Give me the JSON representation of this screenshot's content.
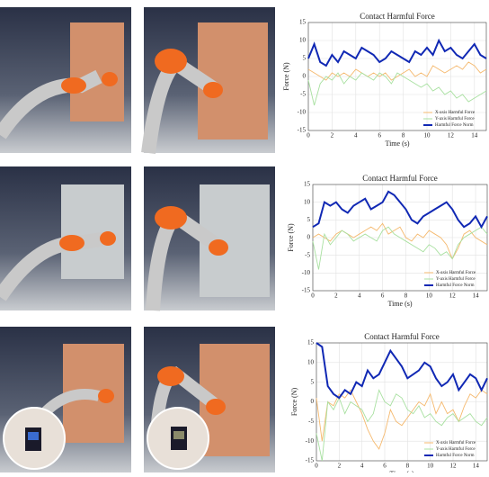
{
  "chart_data": [
    {
      "type": "line",
      "title": "Contact Harmful Force",
      "xlabel": "Time (s)",
      "ylabel": "Force (N)",
      "x": [
        0,
        0.5,
        1,
        1.5,
        2,
        2.5,
        3,
        3.5,
        4,
        4.5,
        5,
        5.5,
        6,
        6.5,
        7,
        7.5,
        8,
        8.5,
        9,
        9.5,
        10,
        10.5,
        11,
        11.5,
        12,
        12.5,
        13,
        13.5,
        14,
        14.5,
        15
      ],
      "xlim": [
        0,
        15
      ],
      "xticks": [
        0,
        2,
        4,
        6,
        8,
        10,
        12,
        14
      ],
      "ylim": [
        -15,
        15
      ],
      "yticks": [
        -15,
        -10,
        -5,
        0,
        5,
        10,
        15
      ],
      "grid": true,
      "legend": "lower right",
      "series": [
        {
          "name": "X-axis Harmful Force",
          "color": "#f5b96e",
          "values": [
            2,
            1,
            0,
            -1,
            1,
            0,
            1,
            0,
            2,
            1,
            0,
            1,
            0,
            1,
            -1,
            0,
            1,
            2,
            0,
            1,
            0,
            3,
            2,
            1,
            2,
            3,
            2,
            4,
            3,
            1,
            2
          ]
        },
        {
          "name": "Y-axis Harmful Force",
          "color": "#a8e0a0",
          "values": [
            -1,
            -8,
            -2,
            0,
            -1,
            1,
            -2,
            0,
            -1,
            1,
            0,
            -1,
            1,
            0,
            -2,
            1,
            0,
            -1,
            -2,
            -3,
            -2,
            -4,
            -3,
            -5,
            -4,
            -6,
            -5,
            -7,
            -6,
            -5,
            -4
          ]
        },
        {
          "name": "Harmful Force Norm",
          "color": "#1028b4",
          "values": [
            5,
            9,
            4,
            3,
            6,
            4,
            7,
            6,
            5,
            8,
            7,
            6,
            4,
            5,
            7,
            6,
            5,
            4,
            7,
            6,
            8,
            6,
            10,
            7,
            8,
            6,
            5,
            7,
            9,
            6,
            5
          ]
        }
      ]
    },
    {
      "type": "line",
      "title": "Contact Harmful Force",
      "xlabel": "Time (s)",
      "ylabel": "Force (N)",
      "x": [
        0,
        0.5,
        1,
        1.5,
        2,
        2.5,
        3,
        3.5,
        4,
        4.5,
        5,
        5.5,
        6,
        6.5,
        7,
        7.5,
        8,
        8.5,
        9,
        9.5,
        10,
        10.5,
        11,
        11.5,
        12,
        12.5,
        13,
        13.5,
        14,
        14.5,
        15
      ],
      "xlim": [
        0,
        15
      ],
      "xticks": [
        0,
        2,
        4,
        6,
        8,
        10,
        12,
        14
      ],
      "ylim": [
        -15,
        15
      ],
      "yticks": [
        -15,
        -10,
        -5,
        0,
        5,
        10,
        15
      ],
      "grid": true,
      "legend": "lower right",
      "series": [
        {
          "name": "X-axis Harmful Force",
          "color": "#f5b96e",
          "values": [
            0,
            1,
            0,
            -1,
            1,
            2,
            1,
            0,
            1,
            2,
            3,
            2,
            4,
            1,
            2,
            3,
            0,
            -1,
            1,
            0,
            2,
            1,
            0,
            -2,
            -6,
            -3,
            1,
            2,
            0,
            -1,
            -2
          ]
        },
        {
          "name": "Y-axis Harmful Force",
          "color": "#a8e0a0",
          "values": [
            -1,
            -9,
            1,
            -2,
            0,
            2,
            1,
            -1,
            0,
            1,
            0,
            -1,
            2,
            3,
            1,
            0,
            -1,
            -2,
            -3,
            -4,
            -2,
            -3,
            -5,
            -4,
            -6,
            -2,
            0,
            1,
            2,
            3,
            1
          ]
        },
        {
          "name": "Harmful Force Norm",
          "color": "#1028b4",
          "values": [
            3,
            4,
            10,
            9,
            10,
            8,
            7,
            9,
            10,
            11,
            8,
            9,
            10,
            13,
            12,
            10,
            8,
            5,
            4,
            6,
            7,
            8,
            9,
            10,
            8,
            5,
            3,
            4,
            6,
            3,
            6
          ]
        }
      ]
    },
    {
      "type": "line",
      "title": "Contact Harmful Force",
      "xlabel": "Time (s)",
      "ylabel": "Force (N)",
      "x": [
        0,
        0.5,
        1,
        1.5,
        2,
        2.5,
        3,
        3.5,
        4,
        4.5,
        5,
        5.5,
        6,
        6.5,
        7,
        7.5,
        8,
        8.5,
        9,
        9.5,
        10,
        10.5,
        11,
        11.5,
        12,
        12.5,
        13,
        13.5,
        14,
        14.5,
        15
      ],
      "xlim": [
        0,
        15
      ],
      "xticks": [
        0,
        2,
        4,
        6,
        8,
        10,
        12,
        14
      ],
      "ylim": [
        -15,
        15
      ],
      "yticks": [
        -15,
        -10,
        -5,
        0,
        5,
        10,
        15
      ],
      "grid": true,
      "legend": "lower right",
      "series": [
        {
          "name": "X-axis Harmful Force",
          "color": "#f5b96e",
          "values": [
            1,
            -10,
            0,
            -1,
            2,
            1,
            3,
            0,
            -3,
            -7,
            -10,
            -12,
            -8,
            -2,
            -5,
            -6,
            -4,
            -2,
            0,
            -1,
            2,
            -3,
            0,
            -3,
            -2,
            -5,
            -1,
            2,
            1,
            3,
            2
          ]
        },
        {
          "name": "Y-axis Harmful Force",
          "color": "#a8e0a0",
          "values": [
            -8,
            -15,
            0,
            -2,
            1,
            -3,
            0,
            -1,
            -2,
            -5,
            -3,
            3,
            0,
            -1,
            2,
            1,
            -2,
            -3,
            -1,
            -4,
            -3,
            -5,
            -6,
            -4,
            -3,
            -5,
            -4,
            -3,
            -5,
            -6,
            -4
          ]
        },
        {
          "name": "Harmful Force Norm",
          "color": "#1028b4",
          "values": [
            15,
            14,
            4,
            2,
            1,
            3,
            2,
            5,
            4,
            8,
            6,
            7,
            10,
            13,
            11,
            9,
            6,
            7,
            8,
            10,
            9,
            6,
            4,
            5,
            7,
            3,
            5,
            7,
            6,
            3,
            6
          ]
        }
      ]
    }
  ]
}
